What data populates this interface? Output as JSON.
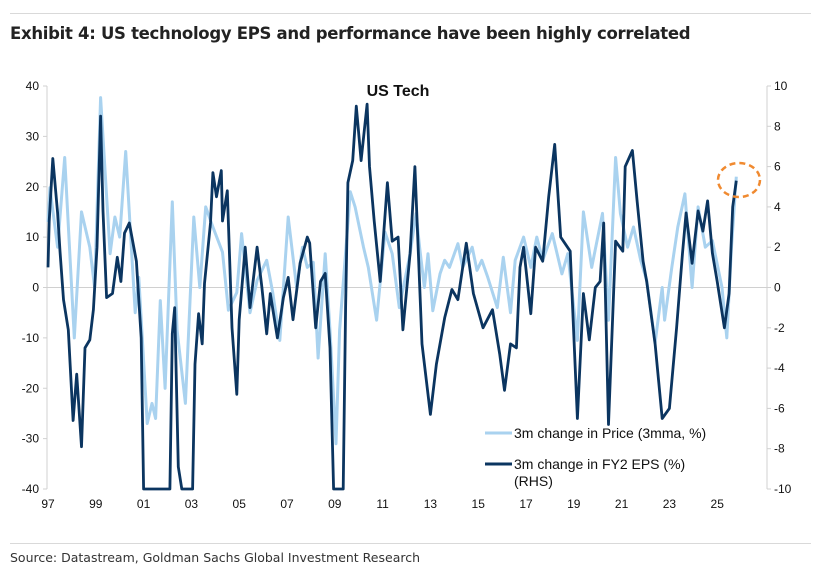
{
  "header": {
    "title": "Exhibit 4: US technology EPS and performance have been highly correlated"
  },
  "footer": {
    "source": "Source: Datastream, Goldman Sachs Global Investment Research"
  },
  "colors": {
    "price": "#a9d2ef",
    "eps": "#0b3560",
    "annotation": "#f08a30"
  },
  "chart_data": {
    "type": "line",
    "title": "US Tech",
    "grid": false,
    "legend_position": "bottom-right",
    "x_ticks": [
      "97",
      "99",
      "01",
      "03",
      "05",
      "07",
      "09",
      "11",
      "13",
      "15",
      "17",
      "19",
      "21",
      "23",
      "25"
    ],
    "xlim": [
      1997,
      2027.3
    ],
    "y_left": {
      "lim": [
        -40,
        40
      ],
      "ticks": [
        "40",
        "30",
        "20",
        "10",
        "0",
        "-10",
        "-20",
        "-30",
        "-40"
      ]
    },
    "y_right": {
      "lim": [
        -10,
        10
      ],
      "ticks": [
        "10",
        "8",
        "6",
        "4",
        "2",
        "0",
        "-2",
        "-4",
        "-6",
        "-8",
        "-10"
      ]
    },
    "annotation": "circle around latest values (2025)",
    "series": [
      {
        "name": "3m change in Price (3mma, %)",
        "axis": "left",
        "points": [
          [
            1997.0,
            13
          ],
          [
            1997.08,
            19.8
          ],
          [
            1997.4,
            8
          ],
          [
            1997.7,
            25.8
          ],
          [
            1998.1,
            -10
          ],
          [
            1998.4,
            15
          ],
          [
            1998.75,
            8
          ],
          [
            1998.95,
            0
          ],
          [
            1999.2,
            37.7
          ],
          [
            1999.6,
            6.7
          ],
          [
            1999.8,
            14
          ],
          [
            2000.0,
            10
          ],
          [
            2000.25,
            27
          ],
          [
            2000.65,
            -5
          ],
          [
            2000.8,
            2
          ],
          [
            2001.15,
            -27
          ],
          [
            2001.35,
            -23
          ],
          [
            2001.5,
            -26
          ],
          [
            2001.7,
            -2.6
          ],
          [
            2001.9,
            -20
          ],
          [
            2002.2,
            17
          ],
          [
            2002.4,
            -8.5
          ],
          [
            2002.75,
            -23
          ],
          [
            2003.1,
            14
          ],
          [
            2003.35,
            0
          ],
          [
            2003.6,
            16
          ],
          [
            2003.9,
            12
          ],
          [
            2004.3,
            7
          ],
          [
            2004.55,
            -4.5
          ],
          [
            2004.9,
            -1
          ],
          [
            2005.1,
            10.7
          ],
          [
            2005.45,
            -5
          ],
          [
            2005.75,
            1.4
          ],
          [
            2006.15,
            5.4
          ],
          [
            2006.4,
            -1
          ],
          [
            2006.7,
            -10.5
          ],
          [
            2007.05,
            14
          ],
          [
            2007.4,
            0
          ],
          [
            2007.65,
            8
          ],
          [
            2007.85,
            4
          ],
          [
            2008.1,
            5
          ],
          [
            2008.3,
            -14
          ],
          [
            2008.6,
            6.7
          ],
          [
            2008.8,
            -8.5
          ],
          [
            2009.05,
            -31
          ],
          [
            2009.2,
            -8.5
          ],
          [
            2009.65,
            19
          ],
          [
            2009.85,
            16
          ],
          [
            2010.2,
            8
          ],
          [
            2010.4,
            4
          ],
          [
            2010.75,
            -6.5
          ],
          [
            2011.1,
            11
          ],
          [
            2011.4,
            6.7
          ],
          [
            2011.7,
            -4
          ],
          [
            2012.15,
            6.7
          ],
          [
            2012.4,
            14.7
          ],
          [
            2012.55,
            8
          ],
          [
            2012.75,
            0
          ],
          [
            2012.9,
            6.7
          ],
          [
            2013.1,
            -4.6
          ],
          [
            2013.4,
            2.7
          ],
          [
            2013.6,
            5.4
          ],
          [
            2013.8,
            4
          ],
          [
            2014.15,
            8.7
          ],
          [
            2014.35,
            4
          ],
          [
            2014.75,
            8
          ],
          [
            2014.95,
            3.4
          ],
          [
            2015.15,
            5.4
          ],
          [
            2015.4,
            2
          ],
          [
            2015.8,
            -4
          ],
          [
            2016.05,
            6
          ],
          [
            2016.35,
            -5
          ],
          [
            2016.55,
            5.4
          ],
          [
            2016.9,
            10
          ],
          [
            2017.2,
            4
          ],
          [
            2017.45,
            10
          ],
          [
            2017.7,
            5.4
          ],
          [
            2018.1,
            10.7
          ],
          [
            2018.5,
            2.7
          ],
          [
            2018.75,
            6.7
          ],
          [
            2019.15,
            -10.5
          ],
          [
            2019.4,
            15
          ],
          [
            2019.75,
            4
          ],
          [
            2020.2,
            14.7
          ],
          [
            2020.45,
            -6.5
          ],
          [
            2020.75,
            25.8
          ],
          [
            2020.95,
            14.7
          ],
          [
            2021.25,
            8
          ],
          [
            2021.5,
            12
          ],
          [
            2021.8,
            5.4
          ],
          [
            2022.05,
            1.4
          ],
          [
            2022.4,
            -11
          ],
          [
            2022.7,
            0
          ],
          [
            2022.8,
            -6.5
          ],
          [
            2023.1,
            4
          ],
          [
            2023.35,
            12
          ],
          [
            2023.65,
            18.6
          ],
          [
            2023.95,
            0
          ],
          [
            2024.2,
            16
          ],
          [
            2024.5,
            8
          ],
          [
            2024.8,
            9.3
          ],
          [
            2025.2,
            0
          ],
          [
            2025.4,
            -10
          ],
          [
            2025.6,
            8
          ],
          [
            2025.8,
            22
          ]
        ]
      },
      {
        "name": "3m change in FY2 EPS (%) (RHS)",
        "axis": "right",
        "points": [
          [
            1997.0,
            1.0
          ],
          [
            1997.05,
            3.3
          ],
          [
            1997.2,
            6.4
          ],
          [
            1997.4,
            3.7
          ],
          [
            1997.5,
            1.8
          ],
          [
            1997.65,
            -0.6
          ],
          [
            1997.85,
            -2.1
          ],
          [
            1998.05,
            -6.6
          ],
          [
            1998.2,
            -4.3
          ],
          [
            1998.4,
            -7.9
          ],
          [
            1998.55,
            -3
          ],
          [
            1998.75,
            -2.6
          ],
          [
            1998.9,
            -1.1
          ],
          [
            1999.05,
            2
          ],
          [
            1999.2,
            8.5
          ],
          [
            1999.3,
            3.8
          ],
          [
            1999.45,
            -0.5
          ],
          [
            1999.7,
            -0.3
          ],
          [
            1999.9,
            1.5
          ],
          [
            2000.05,
            0.3
          ],
          [
            2000.2,
            2.7
          ],
          [
            2000.4,
            3.2
          ],
          [
            2000.7,
            1.3
          ],
          [
            2000.9,
            -2.5
          ],
          [
            2001.0,
            -10
          ],
          [
            2002.1,
            -10
          ],
          [
            2002.2,
            -2.3
          ],
          [
            2002.3,
            -1
          ],
          [
            2002.45,
            -8.9
          ],
          [
            2002.6,
            -10
          ],
          [
            2003.05,
            -10
          ],
          [
            2003.15,
            -3.8
          ],
          [
            2003.3,
            -1.3
          ],
          [
            2003.45,
            -2.8
          ],
          [
            2003.55,
            0.2
          ],
          [
            2003.8,
            3.2
          ],
          [
            2003.9,
            5.7
          ],
          [
            2004.05,
            4.5
          ],
          [
            2004.25,
            5.8
          ],
          [
            2004.3,
            3.3
          ],
          [
            2004.5,
            4.8
          ],
          [
            2004.7,
            -2
          ],
          [
            2004.9,
            -5.3
          ],
          [
            2005.0,
            -1.6
          ],
          [
            2005.25,
            2
          ],
          [
            2005.45,
            -1
          ],
          [
            2005.75,
            2
          ],
          [
            2005.95,
            0
          ],
          [
            2006.15,
            -2.3
          ],
          [
            2006.3,
            -0.3
          ],
          [
            2006.6,
            -2.5
          ],
          [
            2006.85,
            -0.5
          ],
          [
            2007.05,
            0.5
          ],
          [
            2007.25,
            -1.6
          ],
          [
            2007.55,
            1.2
          ],
          [
            2007.85,
            2.5
          ],
          [
            2007.95,
            2.2
          ],
          [
            2008.2,
            -2
          ],
          [
            2008.4,
            0.3
          ],
          [
            2008.6,
            0.7
          ],
          [
            2008.8,
            -3
          ],
          [
            2008.95,
            -10
          ],
          [
            2009.35,
            -10
          ],
          [
            2009.45,
            -1
          ],
          [
            2009.55,
            5.2
          ],
          [
            2009.75,
            6.3
          ],
          [
            2009.9,
            9
          ],
          [
            2010.1,
            6.3
          ],
          [
            2010.35,
            9.1
          ],
          [
            2010.45,
            6
          ],
          [
            2010.65,
            3.3
          ],
          [
            2010.9,
            0.3
          ],
          [
            2011.2,
            5.2
          ],
          [
            2011.4,
            2.3
          ],
          [
            2011.65,
            2.5
          ],
          [
            2011.85,
            -2.1
          ],
          [
            2012.15,
            1.7
          ],
          [
            2012.35,
            6
          ],
          [
            2012.65,
            -2.8
          ],
          [
            2013.0,
            -6.3
          ],
          [
            2013.25,
            -3.8
          ],
          [
            2013.6,
            -1.5
          ],
          [
            2013.9,
            -0.1
          ],
          [
            2014.15,
            -0.6
          ],
          [
            2014.5,
            2.2
          ],
          [
            2014.8,
            -0.3
          ],
          [
            2015.2,
            -2
          ],
          [
            2015.6,
            -1.1
          ],
          [
            2015.9,
            -3.3
          ],
          [
            2016.1,
            -5.1
          ],
          [
            2016.35,
            -2.8
          ],
          [
            2016.6,
            -3
          ],
          [
            2016.75,
            1
          ],
          [
            2016.9,
            2
          ],
          [
            2017.2,
            -1.3
          ],
          [
            2017.4,
            2
          ],
          [
            2017.7,
            1.3
          ],
          [
            2017.95,
            4.5
          ],
          [
            2018.2,
            7.1
          ],
          [
            2018.45,
            2.5
          ],
          [
            2018.85,
            1.8
          ],
          [
            2019.15,
            -6.5
          ],
          [
            2019.4,
            -0.3
          ],
          [
            2019.65,
            -2.6
          ],
          [
            2019.9,
            0
          ],
          [
            2020.1,
            0.3
          ],
          [
            2020.25,
            3.2
          ],
          [
            2020.45,
            -6.8
          ],
          [
            2020.75,
            2.3
          ],
          [
            2021.05,
            1.8
          ],
          [
            2021.15,
            6
          ],
          [
            2021.45,
            6.8
          ],
          [
            2021.65,
            4.3
          ],
          [
            2021.9,
            1.3
          ],
          [
            2022.05,
            0.3
          ],
          [
            2022.4,
            -2.8
          ],
          [
            2022.7,
            -6.5
          ],
          [
            2023.0,
            -6
          ],
          [
            2023.3,
            -2
          ],
          [
            2023.55,
            1.7
          ],
          [
            2023.7,
            3.7
          ],
          [
            2023.95,
            1.2
          ],
          [
            2024.2,
            3.8
          ],
          [
            2024.4,
            2.8
          ],
          [
            2024.6,
            4.3
          ],
          [
            2024.8,
            1.7
          ],
          [
            2025.0,
            0.3
          ],
          [
            2025.3,
            -2
          ],
          [
            2025.5,
            -0.3
          ],
          [
            2025.65,
            4
          ],
          [
            2025.8,
            5.3
          ]
        ]
      }
    ],
    "legend": {
      "price": "3m change in Price (3mma, %)",
      "eps_line1": "3m change in FY2 EPS (%)",
      "eps_line2": "(RHS)"
    }
  }
}
